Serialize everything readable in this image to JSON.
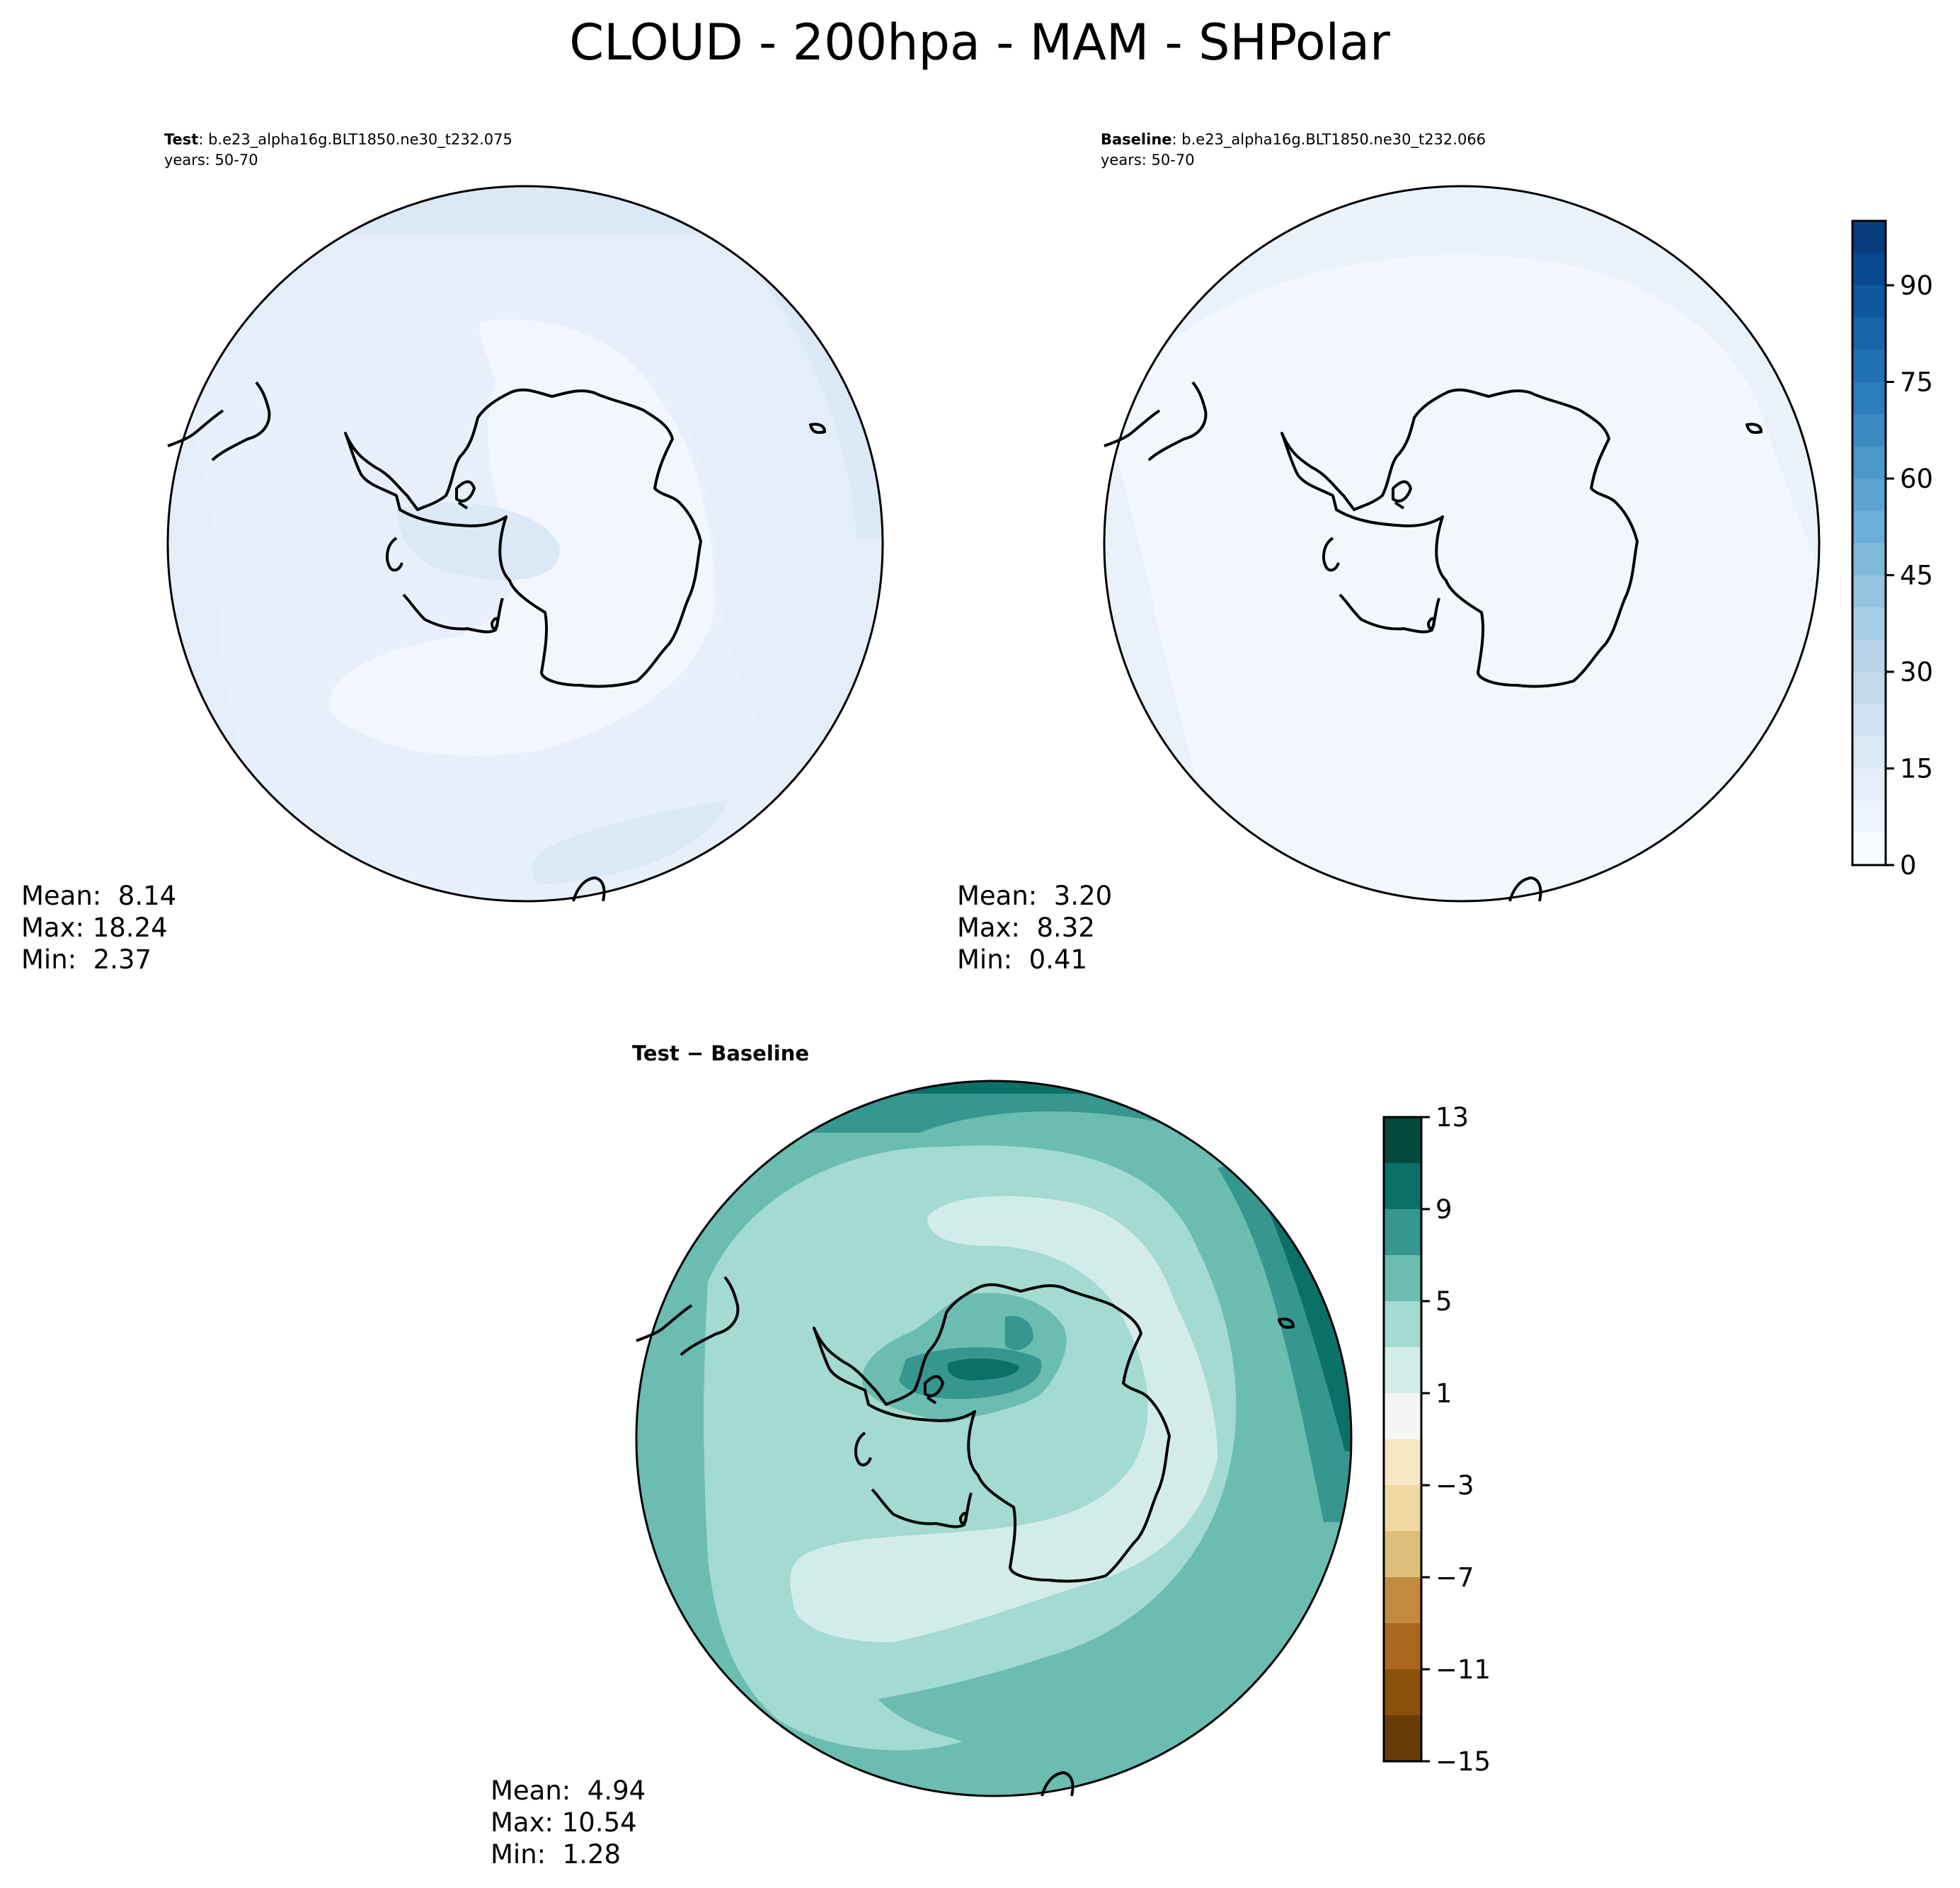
{
  "figure": {
    "title": "CLOUD - 200hpa - MAM - SHPolar"
  },
  "chart_data": [
    {
      "type": "heatmap",
      "projection": "south-polar-stereographic",
      "panel": "test",
      "label_bold": "Test",
      "label_rest": ": b.e23_alpha16g.BLT1850.ne30_t232.075",
      "years": "years: 50-70",
      "stats": {
        "mean": "Mean:  8.14",
        "max": "Max: 18.24",
        "min": "Min:  2.37"
      },
      "field_range": [
        2.37,
        18.24
      ],
      "colorscale": "Blues",
      "colorbar": "shared-right-of-baseline"
    },
    {
      "type": "heatmap",
      "projection": "south-polar-stereographic",
      "panel": "baseline",
      "label_bold": "Baseline",
      "label_rest": ": b.e23_alpha16g.BLT1850.ne30_t232.066",
      "years": "years: 50-70",
      "stats": {
        "mean": "Mean:  3.20",
        "max": "Max:  8.32",
        "min": "Min:  0.41"
      },
      "field_range": [
        0.41,
        8.32
      ],
      "colorscale": "Blues",
      "colorbar": {
        "range": [
          0,
          100
        ],
        "levels": [
          0,
          5,
          10,
          15,
          20,
          25,
          30,
          35,
          40,
          45,
          50,
          55,
          60,
          65,
          70,
          75,
          80,
          85,
          90,
          95,
          100
        ],
        "ticks": [
          0,
          15,
          30,
          45,
          60,
          75,
          90
        ],
        "tick_labels": [
          "0",
          "15",
          "30",
          "45",
          "60",
          "75",
          "90"
        ],
        "colors": [
          "#f7fbff",
          "#edf4fc",
          "#e3eef9",
          "#d9e8f5",
          "#cfe1f2",
          "#c5daee",
          "#b6d4e9",
          "#a6cee4",
          "#94c4df",
          "#80b9da",
          "#6baed6",
          "#5ba3d0",
          "#4a98c9",
          "#3b8bc2",
          "#2c7dbb",
          "#2070b4",
          "#1764ab",
          "#0e58a2",
          "#084a91",
          "#083c7d"
        ]
      }
    },
    {
      "type": "heatmap",
      "projection": "south-polar-stereographic",
      "panel": "difference",
      "label": "Test − Baseline",
      "stats": {
        "mean": "Mean:  4.94",
        "max": "Max: 10.54",
        "min": "Min:  1.28"
      },
      "field_range": [
        1.28,
        10.54
      ],
      "colorscale": "BrBG",
      "colorbar": {
        "range": [
          -15,
          13
        ],
        "levels": [
          -15,
          -13,
          -11,
          -9,
          -7,
          -5,
          -3,
          -1,
          1,
          3,
          5,
          7,
          9,
          11,
          13
        ],
        "ticks": [
          -15,
          -11,
          -7,
          -3,
          1,
          5,
          9,
          13
        ],
        "tick_labels": [
          "−15",
          "−11",
          "−7",
          "−3",
          "1",
          "5",
          "9",
          "13"
        ],
        "colors": [
          "#693c05",
          "#8b510a",
          "#a9661c",
          "#c38a3e",
          "#dbbf7b",
          "#efd8a1",
          "#f6e8c3",
          "#f5f5f5",
          "#d4ece8",
          "#a3dad1",
          "#6bbcb1",
          "#35978f",
          "#0b7068",
          "#01493b"
        ]
      }
    }
  ]
}
